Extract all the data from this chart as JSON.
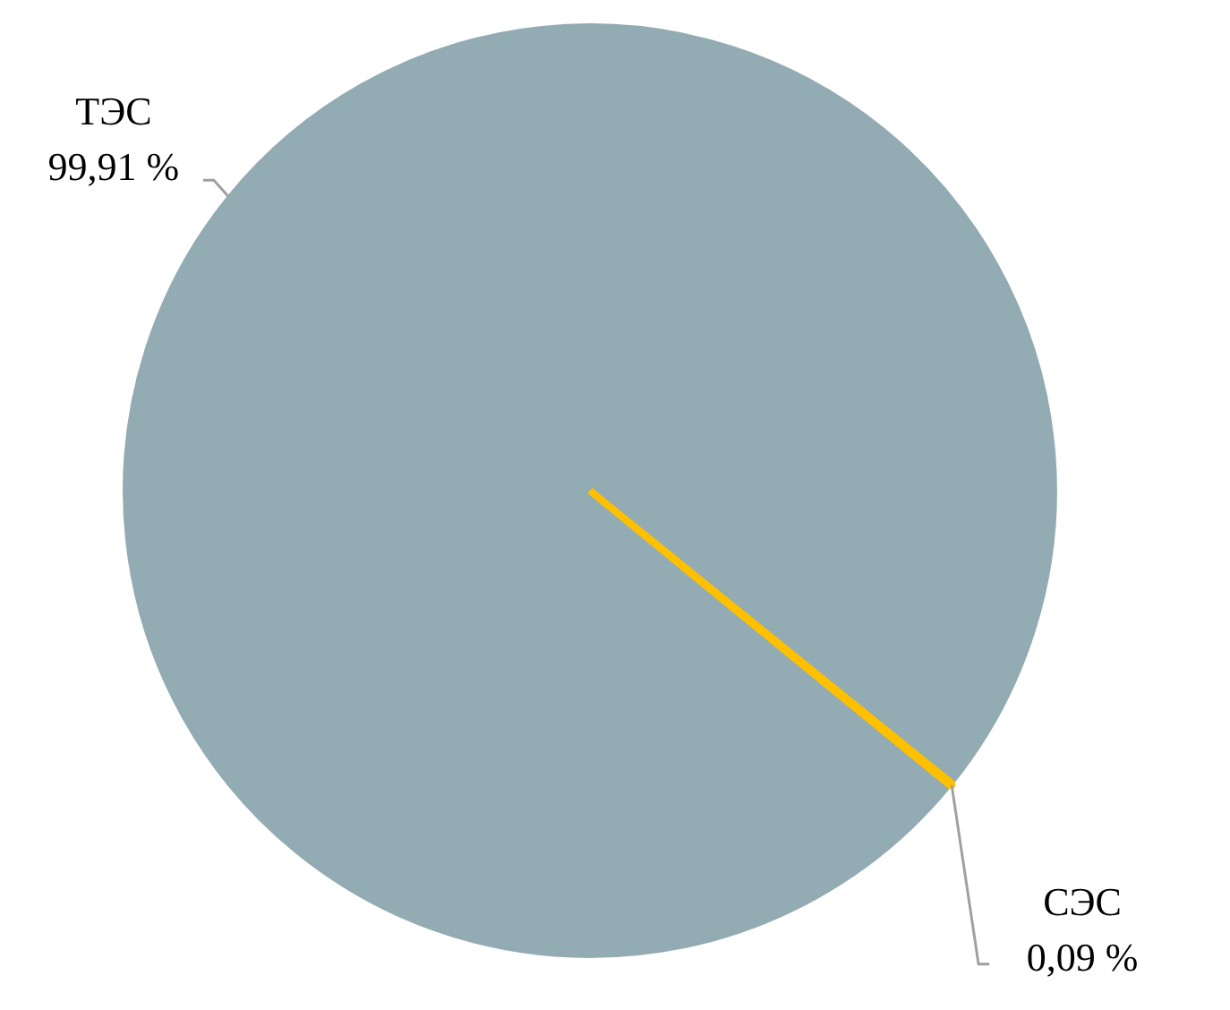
{
  "chart_data": {
    "type": "pie",
    "categories": [
      "ТЭС",
      "СЭС"
    ],
    "values": [
      99.91,
      0.09
    ],
    "colors": [
      "#93abb3",
      "#ffc000"
    ],
    "value_labels": [
      "99,91 %",
      "0,09 %"
    ],
    "legend": false
  }
}
